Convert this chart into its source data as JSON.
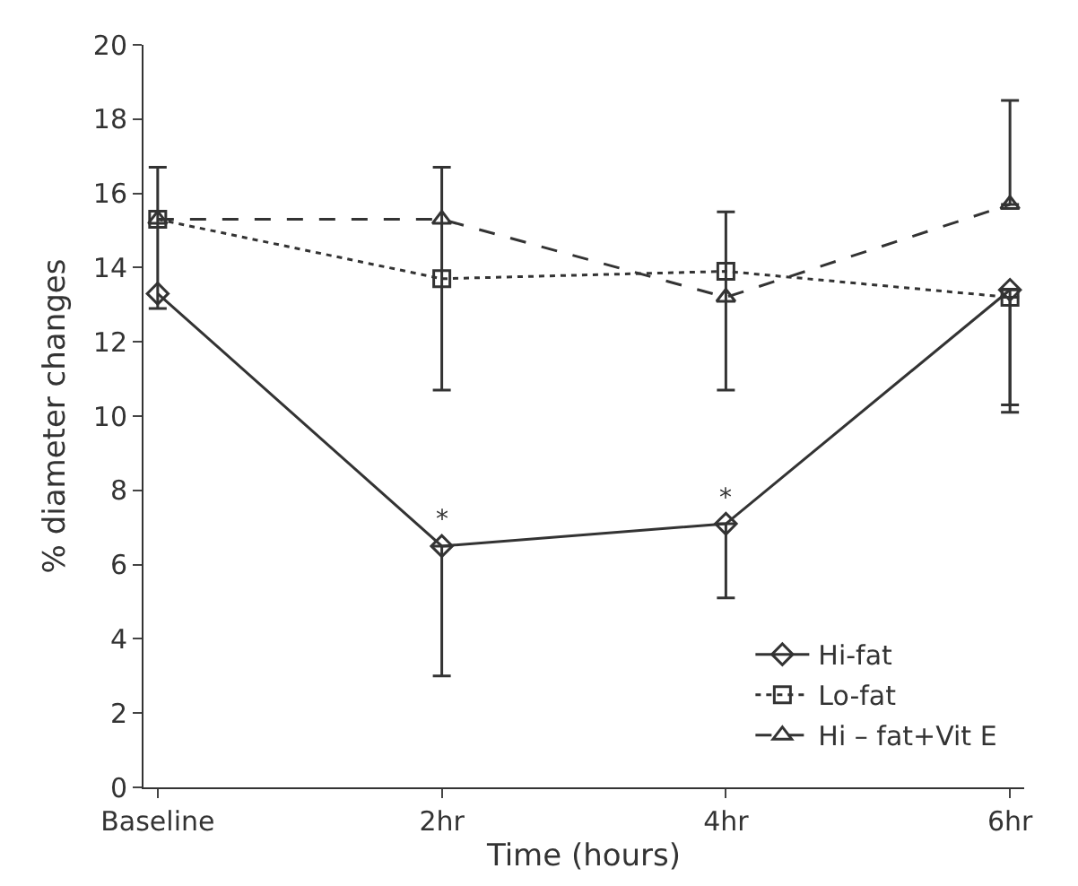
{
  "chart_data": {
    "type": "line",
    "xlabel": "Time (hours)",
    "ylabel": "% diameter changes",
    "categories": [
      "Baseline",
      "2hr",
      "4hr",
      "6hr"
    ],
    "series": [
      {
        "name": "Hi-fat",
        "color": "#333333",
        "marker": "diamond",
        "line_style": "solid",
        "values": [
          13.3,
          6.5,
          7.1,
          13.4
        ],
        "errors": [
          null,
          [
            3.0,
            6.5
          ],
          [
            5.1,
            7.1
          ],
          [
            10.3,
            13.4
          ]
        ]
      },
      {
        "name": "Lo-fat",
        "color": "#333333",
        "marker": "square",
        "line_style": "dotted",
        "values": [
          15.3,
          13.7,
          13.9,
          13.2
        ],
        "errors": [
          [
            12.9,
            16.7
          ],
          [
            10.7,
            16.7
          ],
          null,
          [
            10.1,
            13.2
          ]
        ]
      },
      {
        "name": "Hi – fat+Vit E",
        "color": "#333333",
        "marker": "triangle",
        "line_style": "dashed",
        "values": [
          15.3,
          15.3,
          13.2,
          15.7
        ],
        "errors": [
          null,
          null,
          [
            10.7,
            15.5
          ],
          [
            15.7,
            18.5
          ]
        ]
      }
    ],
    "ylim": [
      0,
      20
    ],
    "yticks": [
      0,
      2,
      4,
      6,
      8,
      10,
      12,
      14,
      16,
      18,
      20
    ],
    "grid": false,
    "legend": "bottom right",
    "annotations": [
      {
        "text": "*",
        "x": "2hr",
        "y": 6.5
      },
      {
        "text": "*",
        "x": "4hr",
        "y": 7.1
      }
    ]
  }
}
